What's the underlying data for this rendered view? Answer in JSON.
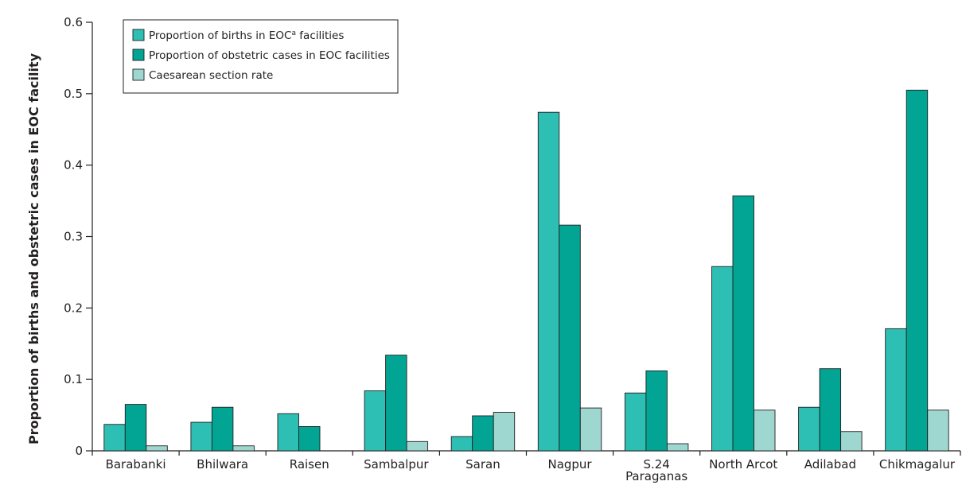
{
  "chart_data": {
    "type": "bar",
    "title": "",
    "xlabel": "",
    "ylabel": "Proportion of births and obstetric cases in EOC facility",
    "ylim": [
      0,
      0.6
    ],
    "yticks": [
      "0",
      "0.1",
      "0.2",
      "0.3",
      "0.4",
      "0.5",
      "0.6"
    ],
    "categories": [
      [
        "Barabanki"
      ],
      [
        "Bhilwara"
      ],
      [
        "Raisen"
      ],
      [
        "Sambalpur"
      ],
      [
        "Saran"
      ],
      [
        "Nagpur"
      ],
      [
        "S.24",
        "Paraganas"
      ],
      [
        "North Arcot"
      ],
      [
        "Adilabad"
      ],
      [
        "Chikmagalur"
      ]
    ],
    "series": [
      {
        "name": "Proportion of births in EOC facilities",
        "name_main": "Proportion of births in EOC",
        "name_sup": "a",
        "name_rest": " facilities",
        "color": "#2ebfb4",
        "values": [
          0.037,
          0.04,
          0.052,
          0.084,
          0.02,
          0.474,
          0.081,
          0.258,
          0.061,
          0.171
        ]
      },
      {
        "name": "Proportion of obstetric cases in EOC facilities",
        "color": "#02a594",
        "values": [
          0.065,
          0.061,
          0.034,
          0.134,
          0.049,
          0.316,
          0.112,
          0.357,
          0.115,
          0.505
        ]
      },
      {
        "name": "Caesarean section rate",
        "color": "#9ed6d0",
        "values": [
          0.007,
          0.007,
          0.0,
          0.013,
          0.054,
          0.06,
          0.01,
          0.057,
          0.027,
          0.057
        ]
      }
    ],
    "legend_position": "top-left",
    "grid": false
  }
}
